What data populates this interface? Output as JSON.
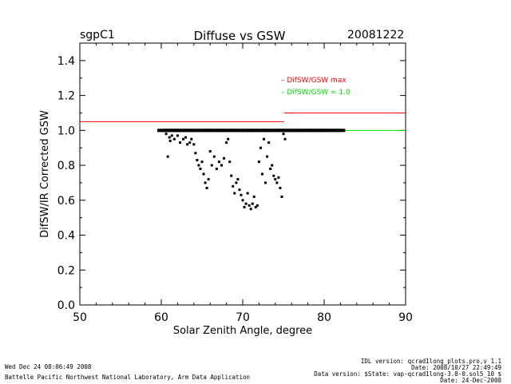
{
  "header": {
    "site": "sgpC1",
    "title": "Diffuse vs GSW",
    "date": "20081222"
  },
  "footer": {
    "left_line1": "Wed Dec 24 08:06:49 2008",
    "left_line2": "Battelle Pacific Northwest National Laboratory, Arm Data Application",
    "right_line1": "IDL version: qcrad1long_plots.pro,v 1.1",
    "right_line2": "Date: 2008/10/27 22:49:49",
    "right_line3": "Data version: $State: vap-qcrad1long-3.8-0.sol5_10 $",
    "right_line4": "Date: 24-Dec-2008"
  },
  "chart_data": {
    "type": "scatter",
    "title": "Diffuse vs GSW",
    "xlabel": "Solar Zenith Angle, degree",
    "ylabel": "DifSW/IR Corrected GSW",
    "xlim": [
      50,
      90
    ],
    "ylim": [
      0.0,
      1.5
    ],
    "xticks": [
      "50",
      "60",
      "70",
      "80",
      "90"
    ],
    "yticks": [
      "0.0",
      "0.2",
      "0.4",
      "0.6",
      "0.8",
      "1.0",
      "1.2",
      "1.4"
    ],
    "grid": false,
    "legend_position": "top-right",
    "colors": {
      "axes": "#000000",
      "limit": "#ff0000",
      "reference": "#00dd00",
      "points": "#000000"
    },
    "limits": [
      {
        "name": "DifSW/GSW max",
        "color": "#ff0000",
        "segments": [
          {
            "x": [
              50,
              75.1
            ],
            "y": 1.05
          },
          {
            "x": [
              75.1,
              90
            ],
            "y": 1.1
          }
        ]
      },
      {
        "name": "DifSW/GSW = 1.0",
        "color": "#00dd00",
        "segments": [
          {
            "x": [
              82,
              90
            ],
            "y": 1.0
          }
        ]
      }
    ],
    "points": {
      "x": [
        60.1,
        60.5,
        61.0,
        61.5,
        62.0,
        62.5,
        63.0,
        63.5,
        64.0,
        64.5,
        65.0,
        65.5,
        66.0,
        66.5,
        67.0,
        67.5,
        68.0,
        68.5,
        69.0,
        69.5,
        70.0,
        70.5,
        71.0,
        71.5,
        72.0,
        72.5,
        73.0,
        73.5,
        74.0,
        74.5,
        75.0,
        75.5,
        76.0,
        76.5,
        77.0,
        77.5,
        78.0,
        78.5,
        79.0,
        79.5,
        80.0,
        80.5,
        81.0,
        81.5,
        82.0,
        60.6,
        60.8,
        61.0,
        61.1,
        61.3,
        61.6,
        62.0,
        62.3,
        62.7,
        63.0,
        63.2,
        63.5,
        63.7,
        64.0,
        64.2,
        64.4,
        64.6,
        64.8,
        65.0,
        65.2,
        65.4,
        65.6,
        65.8,
        66.0,
        66.2,
        66.5,
        66.8,
        67.1,
        67.4,
        67.7,
        68.0,
        68.2,
        68.4,
        68.6,
        68.8,
        69.0,
        69.2,
        69.4,
        69.6,
        69.8,
        70.0,
        70.2,
        70.4,
        70.6,
        70.8,
        71.0,
        71.2,
        71.4,
        71.6,
        71.8,
        72.0,
        72.2,
        72.4,
        72.6,
        72.8,
        73.0,
        73.2,
        73.4,
        73.6,
        73.8,
        74.0,
        74.2,
        74.4,
        74.6,
        74.8,
        75.0,
        75.2
      ],
      "y": [
        1.0,
        1.0,
        1.0,
        1.0,
        1.0,
        1.0,
        1.0,
        1.0,
        1.0,
        1.0,
        1.0,
        1.0,
        1.0,
        1.0,
        1.0,
        1.0,
        1.0,
        1.0,
        1.0,
        1.0,
        1.0,
        1.0,
        1.0,
        1.0,
        1.0,
        1.0,
        1.0,
        1.0,
        1.0,
        1.0,
        1.0,
        1.0,
        1.0,
        1.0,
        1.0,
        1.0,
        1.0,
        1.0,
        1.0,
        1.0,
        1.0,
        1.0,
        1.0,
        1.0,
        1.0,
        0.98,
        0.85,
        0.96,
        0.94,
        0.97,
        0.95,
        0.97,
        0.93,
        0.95,
        0.96,
        0.92,
        0.93,
        0.95,
        0.92,
        0.87,
        0.83,
        0.8,
        0.78,
        0.82,
        0.75,
        0.7,
        0.67,
        0.72,
        0.88,
        0.8,
        0.85,
        0.78,
        0.82,
        0.8,
        0.84,
        0.93,
        0.95,
        0.82,
        0.74,
        0.68,
        0.64,
        0.7,
        0.72,
        0.66,
        0.63,
        0.6,
        0.56,
        0.58,
        0.64,
        0.57,
        0.55,
        0.58,
        0.62,
        0.56,
        0.57,
        0.82,
        0.9,
        0.75,
        0.95,
        0.7,
        0.85,
        0.93,
        0.78,
        0.8,
        0.74,
        0.72,
        0.7,
        0.73,
        0.67,
        0.62,
        0.98,
        0.95
      ]
    }
  }
}
